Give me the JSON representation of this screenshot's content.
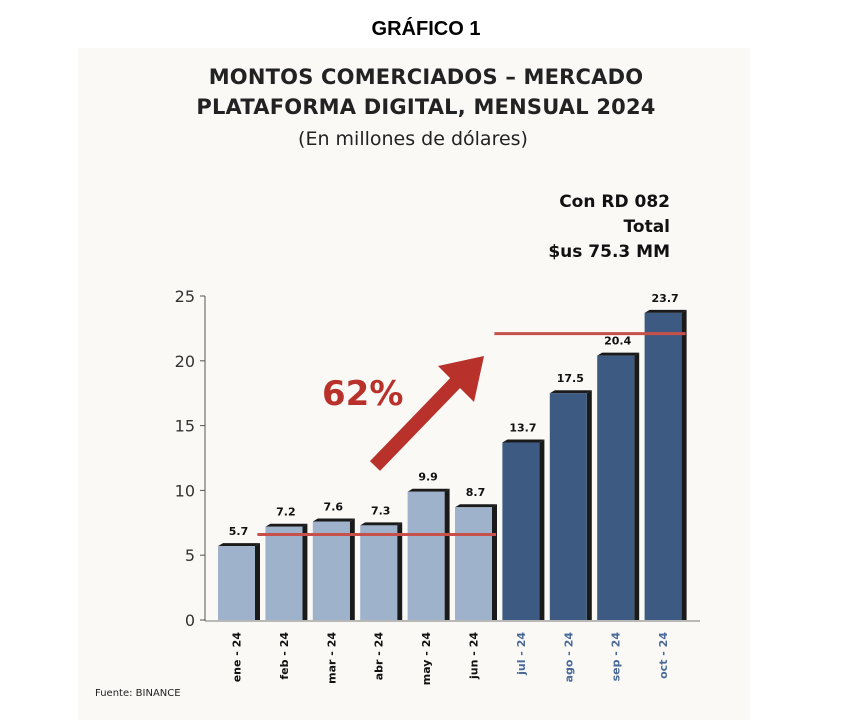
{
  "header": {
    "title": "GRÁFICO 1"
  },
  "chart_data": {
    "type": "bar",
    "title_line1": "MONTOS COMERCIADOS – MERCADO",
    "title_line2": "PLATAFORMA DIGITAL, MENSUAL 2024",
    "subtitle": "(En millones de dólares)",
    "annotation": {
      "line1": "Con RD 082",
      "line2": "Total",
      "line3": "$us 75.3 MM"
    },
    "growth_label": "62%",
    "categories": [
      "ene - 24",
      "feb - 24",
      "mar - 24",
      "abr - 24",
      "may - 24",
      "jun - 24",
      "jul - 24",
      "ago - 24",
      "sep - 24",
      "oct - 24"
    ],
    "values": [
      5.7,
      7.2,
      7.6,
      7.3,
      9.9,
      8.7,
      13.7,
      17.5,
      20.4,
      23.7
    ],
    "value_labels": [
      "5.7",
      "7.2",
      "7.6",
      "7.3",
      "9.9",
      "8.7",
      "13.7",
      "17.5",
      "20.4",
      "23.7"
    ],
    "periods": [
      "before",
      "before",
      "before",
      "before",
      "before",
      "before",
      "after",
      "after",
      "after",
      "after"
    ],
    "colors": {
      "before": "#9fb2cc",
      "after": "#3c5a82",
      "shadow": "#1a1a1a",
      "after_label": "#4a6a9a",
      "before_label": "#111111",
      "average_line": "#c8504a",
      "arrow": "#b8312a"
    },
    "average_lines": [
      {
        "y": 6.6,
        "from_category": 1,
        "to_category": 5
      },
      {
        "y": 22.1,
        "from_category": 6,
        "to_category": 9
      }
    ],
    "ylim": [
      0,
      25
    ],
    "yticks": [
      "0",
      "5",
      "10",
      "15",
      "20",
      "25"
    ],
    "legend": "none",
    "grid": false
  },
  "source": "Fuente: BINANCE"
}
